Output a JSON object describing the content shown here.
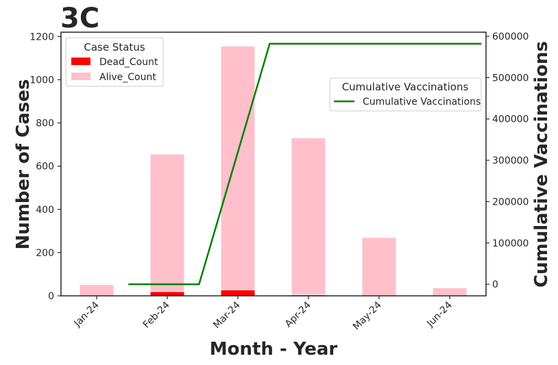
{
  "chart_data": {
    "type": "bar",
    "title": "3C",
    "xlabel": "Month - Year",
    "ylabel": "Number of Cases",
    "y2label": "Cumulative Vaccinations",
    "categories": [
      "Jan-24",
      "Feb-24",
      "Mar-24",
      "Apr-24",
      "May-24",
      "Jun-24"
    ],
    "ylim": [
      0,
      1220
    ],
    "yticks": [
      0,
      200,
      400,
      600,
      800,
      1000,
      1200
    ],
    "y2lim": [
      -28000,
      610000
    ],
    "y2ticks": [
      0,
      100000,
      200000,
      300000,
      400000,
      500000,
      600000
    ],
    "stacked": true,
    "series": [
      {
        "name": "Dead_Count",
        "color": "#ff0000",
        "values": [
          0,
          20,
          28,
          5,
          0,
          0
        ]
      },
      {
        "name": "Alive_Count",
        "color": "#ffc0cb",
        "values": [
          52,
          636,
          1128,
          726,
          270,
          37
        ]
      }
    ],
    "line_series": {
      "name": "Cumulative Vaccinations",
      "color": "#008000",
      "axis": "right",
      "x": [
        0.45,
        1.45,
        2.45,
        3.45,
        4.45,
        5.45
      ],
      "values": [
        0,
        0,
        582000,
        582000,
        582000,
        582000
      ]
    },
    "legend_bars": {
      "title": "Case Status",
      "entries": [
        "Dead_Count",
        "Alive_Count"
      ],
      "position": "top-left"
    },
    "legend_line": {
      "title": "Cumulative Vaccinations",
      "entries": [
        "Cumulative Vaccinations"
      ],
      "position": "upper-right"
    },
    "grid": false
  }
}
